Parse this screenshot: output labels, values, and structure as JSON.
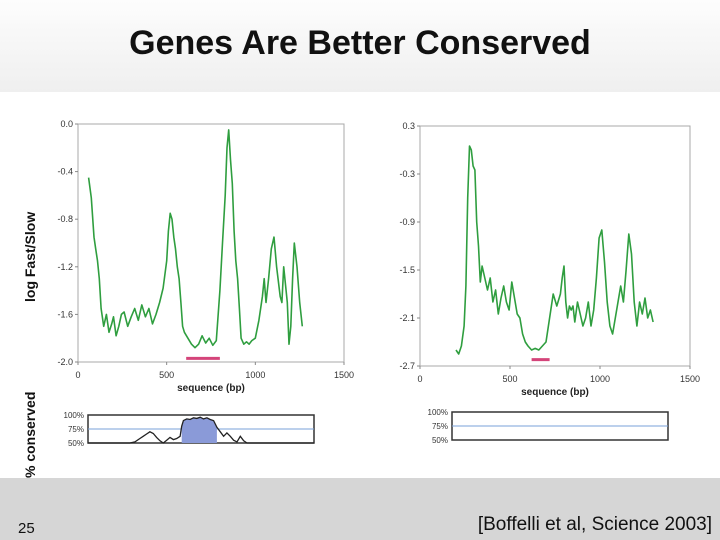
{
  "slide": {
    "title": "Genes Are Better Conserved",
    "number": "25",
    "citation": "[Boffelli et al, Science 2003]",
    "ylabel_rate": "log Fast/Slow",
    "ylabel_conservation": "% conserved"
  },
  "colors": {
    "line": "#2f9e3f",
    "bar": "#d4447a",
    "conservation_fill": "#8a9ad8",
    "reference_line": "#7aa0d8"
  },
  "chart_data": [
    {
      "type": "line",
      "panel": "left",
      "ylabel": "log Fast/Slow",
      "xlabel": "sequence (bp)",
      "xlim": [
        0,
        1500
      ],
      "ylim": [
        -2.0,
        0.0
      ],
      "xticks": [
        0,
        500,
        1000,
        1500
      ],
      "xtick_labels": [
        "0",
        "500",
        "1000",
        "1500"
      ],
      "yticks": [
        0.0,
        -0.4,
        -0.8,
        -1.2,
        -1.6,
        -2.0
      ],
      "ytick_labels": [
        "0.0",
        "-0.4",
        "-0.8",
        "-1.2",
        "-1.6",
        "-2.0"
      ],
      "series": [
        {
          "name": "log Fast/Slow",
          "x": [
            60,
            75,
            90,
            100,
            110,
            120,
            130,
            145,
            160,
            175,
            190,
            200,
            215,
            230,
            245,
            260,
            280,
            300,
            320,
            340,
            360,
            380,
            400,
            420,
            440,
            460,
            480,
            500,
            510,
            520,
            530,
            540,
            550,
            560,
            570,
            580,
            590,
            600,
            620,
            640,
            660,
            680,
            700,
            720,
            740,
            760,
            780,
            800,
            815,
            830,
            840,
            850,
            860,
            870,
            880,
            890,
            900,
            910,
            920,
            935,
            950,
            965,
            980,
            1000,
            1020,
            1040,
            1050,
            1060,
            1075,
            1090,
            1105,
            1120,
            1140,
            1150,
            1160,
            1170,
            1180,
            1190,
            1200,
            1210,
            1220,
            1235,
            1250,
            1265
          ],
          "y": [
            -0.45,
            -0.62,
            -0.95,
            -1.05,
            -1.15,
            -1.3,
            -1.55,
            -1.7,
            -1.6,
            -1.75,
            -1.68,
            -1.62,
            -1.78,
            -1.7,
            -1.6,
            -1.58,
            -1.7,
            -1.62,
            -1.55,
            -1.65,
            -1.52,
            -1.62,
            -1.55,
            -1.68,
            -1.6,
            -1.5,
            -1.38,
            -1.15,
            -0.9,
            -0.75,
            -0.8,
            -0.95,
            -1.05,
            -1.2,
            -1.3,
            -1.5,
            -1.7,
            -1.75,
            -1.8,
            -1.85,
            -1.88,
            -1.85,
            -1.78,
            -1.84,
            -1.8,
            -1.86,
            -1.82,
            -1.4,
            -1.0,
            -0.6,
            -0.2,
            -0.05,
            -0.3,
            -0.5,
            -0.9,
            -1.15,
            -1.3,
            -1.55,
            -1.8,
            -1.85,
            -1.83,
            -1.85,
            -1.82,
            -1.8,
            -1.65,
            -1.45,
            -1.3,
            -1.5,
            -1.3,
            -1.05,
            -0.95,
            -1.2,
            -1.45,
            -1.5,
            -1.2,
            -1.35,
            -1.5,
            -1.85,
            -1.7,
            -1.3,
            -1.0,
            -1.2,
            -1.5,
            -1.7
          ]
        }
      ],
      "annotation_bar": {
        "x_start": 610,
        "x_end": 800,
        "y": -1.97
      },
      "conservation_track": {
        "ytick_labels": [
          "100%",
          "75%",
          "50%"
        ],
        "x": [
          50,
          300,
          330,
          360,
          380,
          400,
          420,
          440,
          460,
          480,
          500,
          520,
          540,
          560,
          580,
          600,
          610,
          620,
          640,
          660,
          680,
          700,
          720,
          740,
          760,
          780,
          800,
          820,
          840,
          860,
          880,
          900,
          920,
          940,
          960,
          980,
          1000,
          1400
        ],
        "y": [
          50,
          50,
          52,
          58,
          62,
          66,
          70,
          67,
          60,
          54,
          50,
          55,
          60,
          56,
          58,
          62,
          80,
          90,
          93,
          92,
          95,
          94,
          96,
          93,
          95,
          92,
          90,
          78,
          70,
          62,
          68,
          62,
          55,
          52,
          62,
          54,
          50,
          50
        ]
      }
    },
    {
      "type": "line",
      "panel": "right",
      "xlabel": "sequence (bp)",
      "xlim": [
        0,
        1500
      ],
      "ylim": [
        -2.7,
        0.3
      ],
      "xticks": [
        0,
        500,
        1000,
        1500
      ],
      "xtick_labels": [
        "0",
        "500",
        "1000",
        "1500"
      ],
      "yticks": [
        0.3,
        -0.3,
        -0.9,
        -1.5,
        -2.1,
        -2.7
      ],
      "ytick_labels": [
        "0.3",
        "-0.3",
        "-0.9",
        "-1.5",
        "-2.1",
        "-2.7"
      ],
      "series": [
        {
          "name": "log Fast/Slow",
          "x": [
            200,
            215,
            230,
            245,
            255,
            265,
            275,
            285,
            295,
            305,
            315,
            325,
            335,
            345,
            360,
            375,
            390,
            405,
            420,
            435,
            450,
            465,
            480,
            495,
            510,
            525,
            540,
            555,
            570,
            585,
            600,
            620,
            640,
            660,
            680,
            700,
            720,
            740,
            760,
            780,
            790,
            800,
            810,
            820,
            830,
            840,
            850,
            860,
            875,
            890,
            905,
            920,
            935,
            950,
            965,
            980,
            995,
            1010,
            1025,
            1040,
            1055,
            1070,
            1085,
            1100,
            1115,
            1130,
            1145,
            1160,
            1175,
            1190,
            1205,
            1220,
            1235,
            1250,
            1265,
            1280,
            1295
          ],
          "y": [
            -2.5,
            -2.55,
            -2.45,
            -2.2,
            -1.7,
            -0.6,
            0.05,
            0.0,
            -0.2,
            -0.25,
            -0.9,
            -1.2,
            -1.65,
            -1.45,
            -1.6,
            -1.75,
            -1.6,
            -1.9,
            -1.75,
            -2.05,
            -1.85,
            -1.7,
            -1.9,
            -2.0,
            -1.65,
            -1.85,
            -2.05,
            -2.1,
            -2.3,
            -2.4,
            -2.45,
            -2.5,
            -2.48,
            -2.5,
            -2.45,
            -2.4,
            -2.1,
            -1.8,
            -1.95,
            -1.8,
            -1.6,
            -1.45,
            -1.9,
            -2.1,
            -1.95,
            -2.0,
            -1.95,
            -2.15,
            -1.9,
            -2.05,
            -2.2,
            -2.1,
            -1.9,
            -2.2,
            -2.0,
            -1.6,
            -1.1,
            -1.0,
            -1.4,
            -1.9,
            -2.2,
            -2.3,
            -2.1,
            -1.9,
            -1.7,
            -1.9,
            -1.5,
            -1.05,
            -1.3,
            -1.9,
            -2.2,
            -1.9,
            -2.05,
            -1.85,
            -2.1,
            -2.0,
            -2.15
          ]
        }
      ],
      "annotation_bar": {
        "x_start": 620,
        "x_end": 720,
        "y": -2.62
      },
      "conservation_track": {
        "ytick_labels": [
          "100%",
          "75%",
          "50%"
        ]
      }
    }
  ]
}
